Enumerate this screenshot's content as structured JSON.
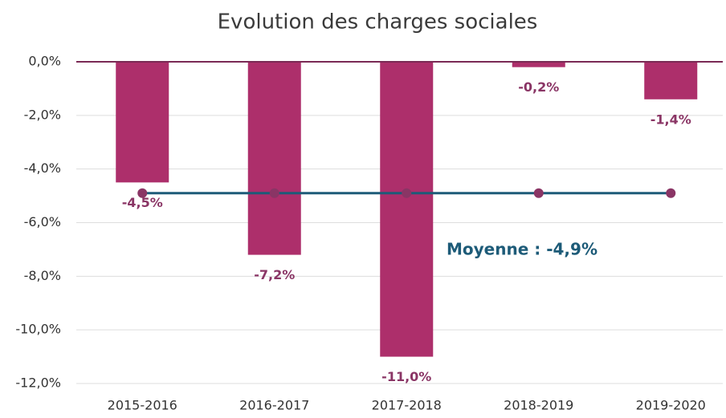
{
  "chart_data": {
    "type": "bar",
    "title": "Evolution des charges sociales",
    "categories": [
      "2015-2016",
      "2016-2017",
      "2017-2018",
      "2018-2019",
      "2019-2020"
    ],
    "values": [
      -4.5,
      -7.2,
      -11.0,
      -0.2,
      -1.4
    ],
    "value_labels": [
      "-4,5%",
      "-7,2%",
      "-11,0%",
      "-0,2%",
      "-1,4%"
    ],
    "color": "#ad2f6b",
    "line_series": [
      {
        "type": "line",
        "color": "#1d5b78",
        "marker_color": "#8a3565",
        "values": [
          -4.9,
          -4.9,
          -4.9,
          -4.9,
          -4.9
        ]
      }
    ],
    "annotation": "Moyenne : -4,9%",
    "ylim": [
      -12,
      0
    ],
    "yticks": [
      {
        "value": 0,
        "label": "0,0%"
      },
      {
        "value": -2,
        "label": "-2,0%"
      },
      {
        "value": -4,
        "label": "-4,0%"
      },
      {
        "value": -6,
        "label": "-6,0%"
      },
      {
        "value": -8,
        "label": "-8,0%"
      },
      {
        "value": -10,
        "label": "-10,0%"
      },
      {
        "value": -12,
        "label": "-12,0%"
      }
    ],
    "grid": true
  }
}
